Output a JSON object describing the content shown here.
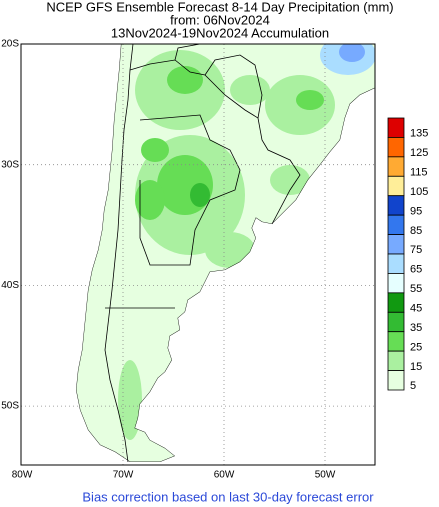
{
  "header": {
    "title": "NCEP GFS Ensemble Forecast 8-14 Day Precipitation (mm)",
    "issued": "from: 06Nov2024",
    "period": "13Nov2024-19Nov2024 Accumulation"
  },
  "map": {
    "lat_labels": [
      "20S",
      "30S",
      "40S",
      "50S"
    ],
    "lon_labels": [
      "80W",
      "70W",
      "60W",
      "50W"
    ]
  },
  "legend": {
    "levels": [
      {
        "label": 135,
        "color": "#dd0000"
      },
      {
        "label": 125,
        "color": "#ff6600"
      },
      {
        "label": 115,
        "color": "#ffaa33"
      },
      {
        "label": 105,
        "color": "#ffee99"
      },
      {
        "label": 95,
        "color": "#1144cc"
      },
      {
        "label": 85,
        "color": "#3377ee"
      },
      {
        "label": 75,
        "color": "#77aaff"
      },
      {
        "label": 65,
        "color": "#aaddff"
      },
      {
        "label": 55,
        "color": "#e6ffff"
      },
      {
        "label": 45,
        "color": "#119911"
      },
      {
        "label": 35,
        "color": "#33bb33"
      },
      {
        "label": 25,
        "color": "#66dd55"
      },
      {
        "label": 15,
        "color": "#aaf0a0"
      },
      {
        "label": 5,
        "color": "#e6ffe0"
      }
    ]
  },
  "footer": "Bias correction based on last 30-day forecast error"
}
